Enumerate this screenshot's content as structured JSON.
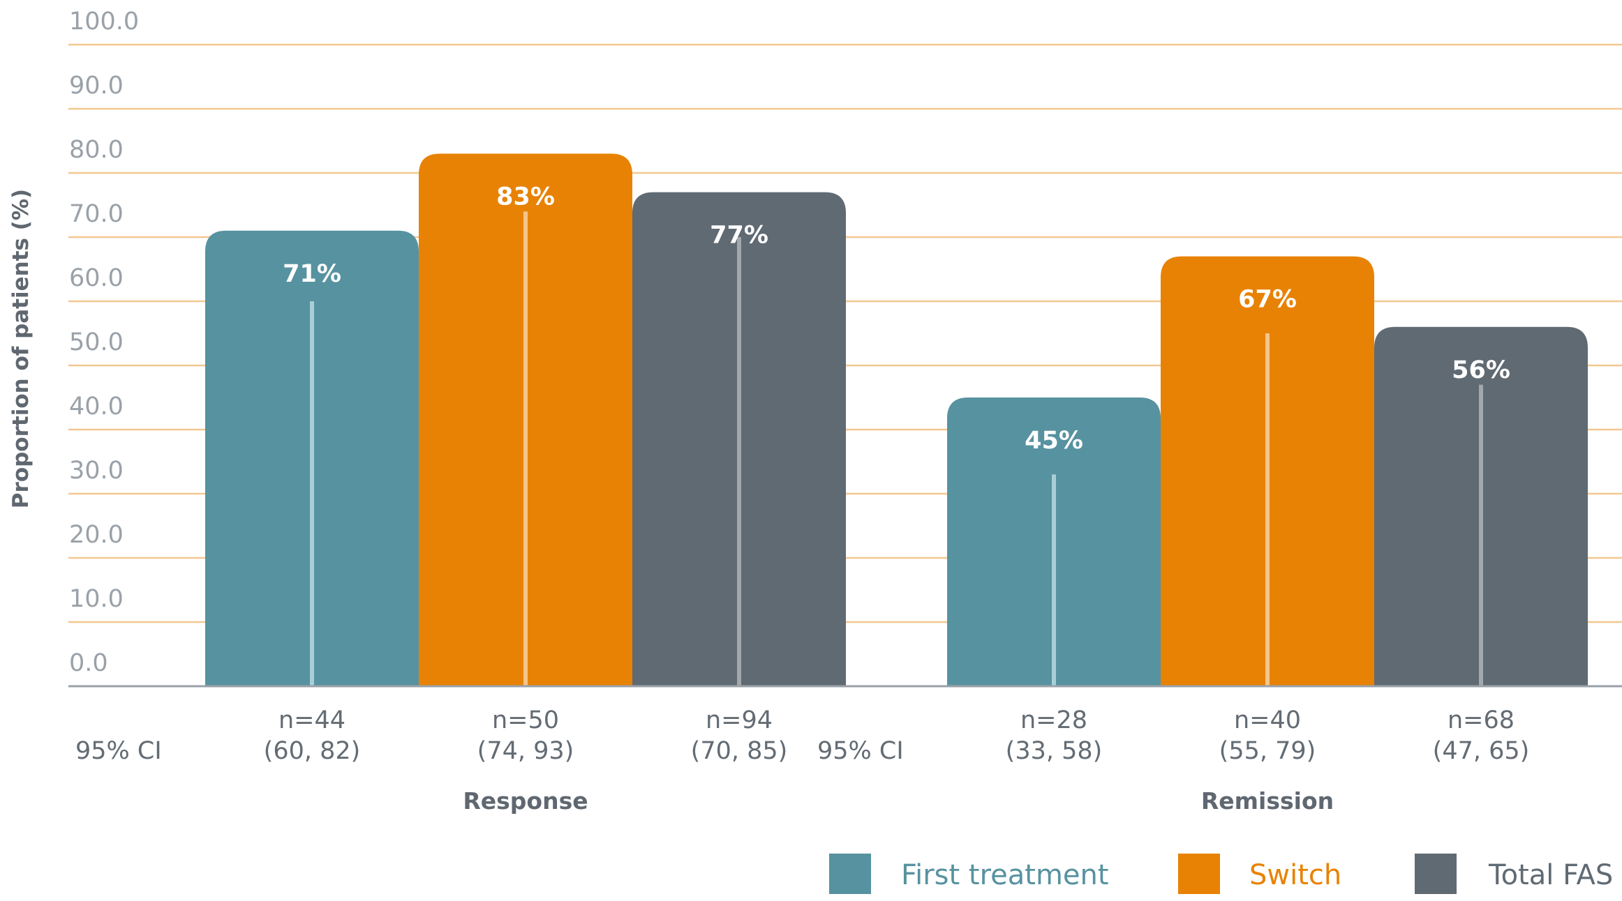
{
  "chart_data": {
    "type": "bar",
    "ylabel": "Proportion of patients (%)",
    "ylim": [
      0,
      100
    ],
    "yticks": [
      "0.0",
      "10.0",
      "20.0",
      "30.0",
      "40.0",
      "50.0",
      "60.0",
      "70.0",
      "80.0",
      "90.0",
      "100.0"
    ],
    "grid": true,
    "legend_position": "bottom-right",
    "ci_label": "95% CI",
    "groups": [
      {
        "name": "Response",
        "bars": [
          {
            "series": "First treatment",
            "value": 71,
            "label": "71%",
            "n": "n=44",
            "ci": "(60, 82)",
            "ci_low": 60,
            "ci_high": 82
          },
          {
            "series": "Switch",
            "value": 83,
            "label": "83%",
            "n": "n=50",
            "ci": "(74, 93)",
            "ci_low": 74,
            "ci_high": 93
          },
          {
            "series": "Total FAS",
            "value": 77,
            "label": "77%",
            "n": "n=94",
            "ci": "(70, 85)",
            "ci_low": 70,
            "ci_high": 85
          }
        ]
      },
      {
        "name": "Remission",
        "bars": [
          {
            "series": "First treatment",
            "value": 45,
            "label": "45%",
            "n": "n=28",
            "ci": "(33, 58)",
            "ci_low": 33,
            "ci_high": 58
          },
          {
            "series": "Switch",
            "value": 67,
            "label": "67%",
            "n": "n=40",
            "ci": "(55, 79)",
            "ci_low": 55,
            "ci_high": 79
          },
          {
            "series": "Total FAS",
            "value": 56,
            "label": "56%",
            "n": "n=68",
            "ci": "(47, 65)",
            "ci_low": 47,
            "ci_high": 65
          }
        ]
      }
    ],
    "series": [
      {
        "name": "First treatment",
        "color": "#5792a0"
      },
      {
        "name": "Switch",
        "color": "#e88204"
      },
      {
        "name": "Total FAS",
        "color": "#606a73"
      }
    ],
    "colors": {
      "grid": "#f2c88f",
      "axis": "#9aa1a8",
      "tick_text": "#9aa1a8",
      "label_text": "#5f6770",
      "ci_text": "#636b73",
      "bar_value_text": "#ffffff",
      "ci_line": {
        "First treatment": "#a9cfd6",
        "Switch": "#f5c58a",
        "Total FAS": "#a3a8ad"
      }
    }
  }
}
